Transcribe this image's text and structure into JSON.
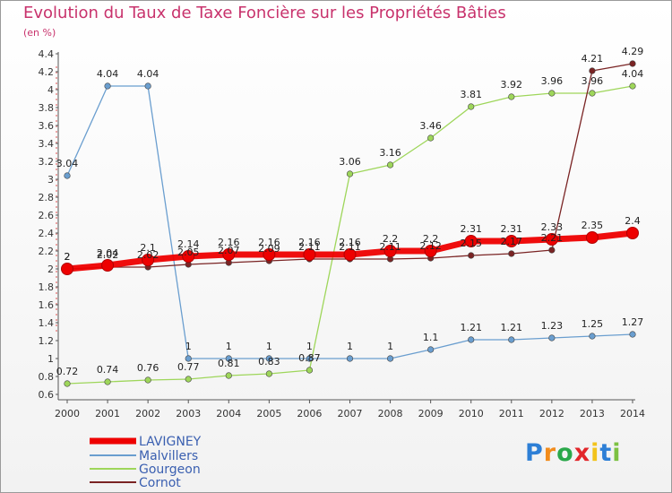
{
  "chart_data": {
    "type": "line",
    "title": "Evolution du Taux de Taxe Foncière sur les Propriétés Bâties",
    "subtitle": "(en %)",
    "xlabel": "",
    "ylabel": "",
    "ylim": [
      0.6,
      4.4
    ],
    "yticks": [
      "0.6",
      "0.8",
      "1",
      "1.2",
      "1.4",
      "1.6",
      "1.8",
      "2",
      "2.2",
      "2.4",
      "2.6",
      "2.8",
      "3",
      "3.2",
      "3.4",
      "3.6",
      "3.8",
      "4",
      "4.2",
      "4.4"
    ],
    "categories": [
      "2000",
      "2001",
      "2002",
      "2003",
      "2004",
      "2005",
      "2006",
      "2007",
      "2008",
      "2009",
      "2010",
      "2011",
      "2012",
      "2013",
      "2014"
    ],
    "series": [
      {
        "name": "LAVIGNEY",
        "color": "#ee0000",
        "values": [
          2,
          2.04,
          2.1,
          2.14,
          2.16,
          2.16,
          2.16,
          2.16,
          2.2,
          2.2,
          2.31,
          2.31,
          2.33,
          2.35,
          2.4
        ],
        "labels": [
          "2",
          "2.04",
          "2.1",
          "2.14",
          "2.16",
          "2.16",
          "2.16",
          "2.16",
          "2.2",
          "2.2",
          "2.31",
          "2.31",
          "2.33",
          "2.35",
          "2.4"
        ]
      },
      {
        "name": "Malvillers",
        "color": "#6a9ecf",
        "values": [
          3.04,
          4.04,
          4.04,
          1,
          1,
          1,
          1,
          1,
          1,
          1.1,
          1.21,
          1.21,
          1.23,
          1.25,
          1.27
        ],
        "labels": [
          "3.04",
          "4.04",
          "4.04",
          "1",
          "1",
          "1",
          "1",
          "1",
          "1",
          "1.1",
          "1.21",
          "1.21",
          "1.23",
          "1.25",
          "1.27"
        ]
      },
      {
        "name": "Gourgeon",
        "color": "#9ed65a",
        "values": [
          0.72,
          0.74,
          0.76,
          0.77,
          0.81,
          0.83,
          0.87,
          3.06,
          3.16,
          3.46,
          3.81,
          3.92,
          3.96,
          3.96,
          4.04
        ],
        "labels": [
          "0.72",
          "0.74",
          "0.76",
          "0.77",
          "0.81",
          "0.83",
          "0.87",
          "3.06",
          "3.16",
          "3.46",
          "3.81",
          "3.92",
          "3.96",
          "3.96",
          "4.04"
        ]
      },
      {
        "name": "Cornot",
        "color": "#7a2424",
        "values": [
          2,
          2.02,
          2.02,
          2.05,
          2.07,
          2.09,
          2.11,
          2.11,
          2.11,
          2.12,
          2.15,
          2.17,
          2.21,
          4.21,
          4.29
        ],
        "labels": [
          "2",
          "2.02",
          "2.02",
          "2.05",
          "2.07",
          "2.09",
          "2.11",
          "2.11",
          "2.11",
          "2.12",
          "2.15",
          "2.17",
          "2.21",
          "4.21",
          "4.29"
        ]
      }
    ]
  },
  "brand": {
    "letters": [
      {
        "char": "P",
        "color": "#2d7fd6"
      },
      {
        "char": "r",
        "color": "#f28c1c"
      },
      {
        "char": "o",
        "color": "#2aa84a"
      },
      {
        "char": "x",
        "color": "#e2262a"
      },
      {
        "char": "i",
        "color": "#f2c31b"
      },
      {
        "char": "t",
        "color": "#2d7fd6"
      },
      {
        "char": "i",
        "color": "#7cc142"
      }
    ]
  },
  "colors": {
    "title": "#c8326c",
    "axis": "#555555",
    "tick_text": "#333333"
  }
}
